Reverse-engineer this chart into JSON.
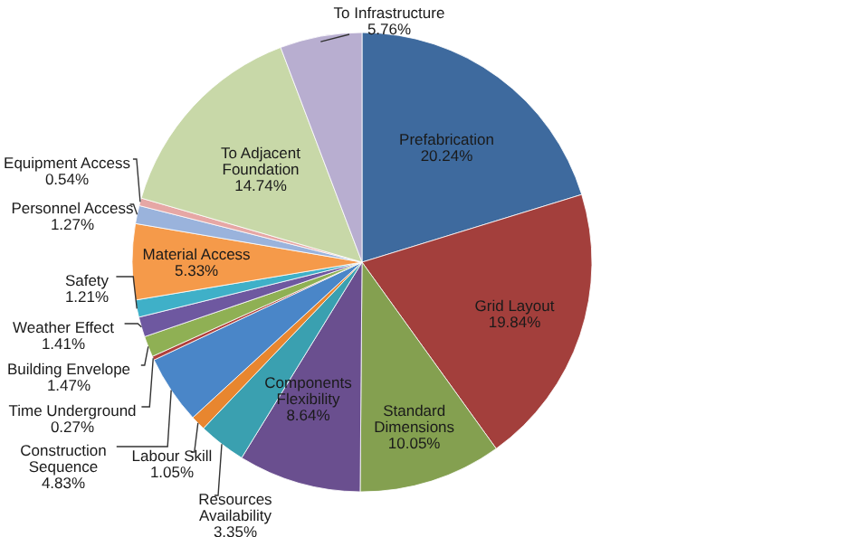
{
  "chart_data": {
    "type": "pie",
    "categories": [
      "Prefabrication",
      "Grid Layout",
      "Standard Dimensions",
      "Components Flexibility",
      "Resources Availability",
      "Labour Skill",
      "Construction Sequence",
      "Time Underground",
      "Building Envelope",
      "Weather Effect",
      "Safety",
      "Material Access",
      "Personnel Access",
      "Equipment Access",
      "To Adjacent Foundation",
      "To Infrastructure"
    ],
    "values": [
      20.24,
      19.84,
      10.05,
      8.64,
      3.35,
      1.05,
      4.83,
      0.27,
      1.47,
      1.41,
      1.21,
      5.33,
      1.27,
      0.54,
      14.74,
      5.76
    ],
    "colors": [
      "#3e6a9e",
      "#a33f3c",
      "#84a050",
      "#6a4f8f",
      "#3aa0b0",
      "#e8862f",
      "#4a86c8",
      "#b0403c",
      "#8fb054",
      "#6e58a0",
      "#3fb0c8",
      "#f59a4a",
      "#9ab3dc",
      "#e6a7a5",
      "#c8d8a8",
      "#b8aed0"
    ],
    "value_labels": [
      "20.24%",
      "19.84%",
      "10.05%",
      "8.64%",
      "3.35%",
      "1.05%",
      "4.83%",
      "0.27%",
      "1.47%",
      "1.41%",
      "1.21%",
      "5.33%",
      "1.27%",
      "0.54%",
      "14.74%",
      "5.76%"
    ]
  }
}
